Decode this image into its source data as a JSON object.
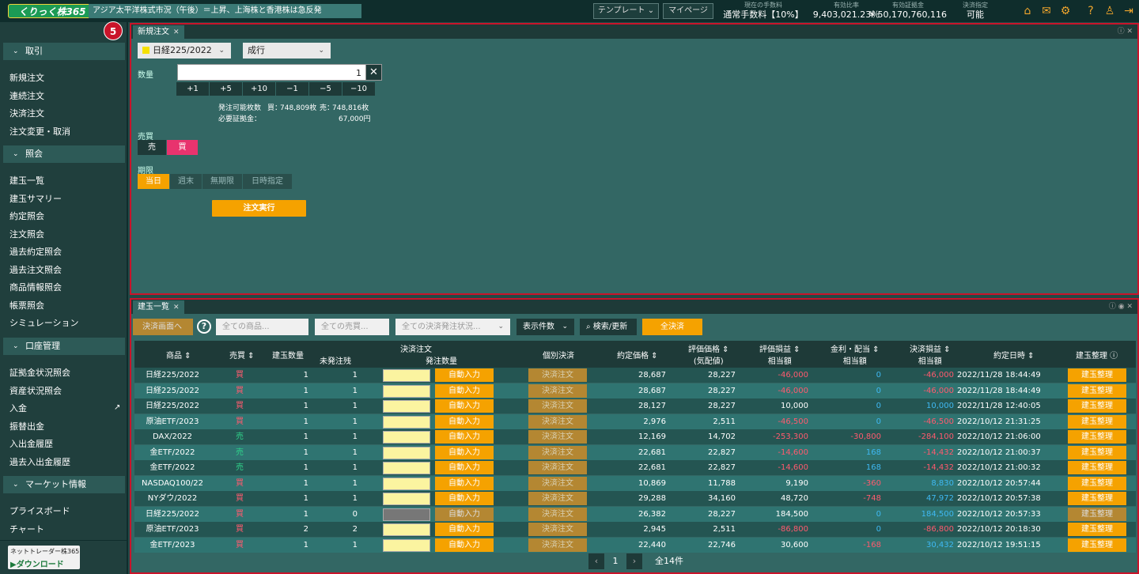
{
  "topbar": {
    "logo": "くりっく株365",
    "news": "アジア太平洋株式市況（午後）＝上昇、上海株と香港株は急反発",
    "template_label": "テンプレート",
    "mypage_label": "マイページ",
    "stats": [
      {
        "label": "現在の手数料",
        "value": "通常手数料【10%】"
      },
      {
        "label": "有効比率",
        "value": "9,403,021.23％"
      },
      {
        "label": "有効証拠金",
        "value": "¥ 50,170,760,116"
      },
      {
        "label": "決済指定",
        "value": "可能"
      }
    ],
    "icons": [
      "home-icon",
      "mail-icon",
      "gear-icon",
      "help-icon",
      "user-icon",
      "logout-icon"
    ]
  },
  "sidebar": {
    "badge": "5",
    "sections": [
      {
        "title": "取引",
        "items": [
          "新規注文",
          "連続注文",
          "決済注文",
          "注文変更・取消"
        ]
      },
      {
        "title": "照会",
        "items": [
          "建玉一覧",
          "建玉サマリー",
          "約定照会",
          "注文照会",
          "過去約定照会",
          "過去注文照会",
          "商品情報照会",
          "帳票照会",
          "シミュレーション"
        ]
      },
      {
        "title": "口座管理",
        "items": [
          "証拠金状況照会",
          "資産状況照会",
          "入金",
          "振替出金",
          "入出金履歴",
          "過去入出金履歴"
        ]
      },
      {
        "title": "マーケット情報",
        "items": [
          "プライスボード",
          "チャート"
        ]
      }
    ],
    "download_top": "ネットトレーダー株365",
    "download_bottom": "ダウンロード"
  },
  "order_panel": {
    "tab": "新規注文",
    "product": "日経225/2022",
    "order_type": "成行",
    "qty_label": "数量",
    "qty_value": "1",
    "steps": [
      "+1",
      "+5",
      "+10",
      "−1",
      "−5",
      "−10"
    ],
    "available_label": "発注可能枚数",
    "buy_label": "買：",
    "buy_value": "748,809枚",
    "sell_label": "売：",
    "sell_value": "748,816枚",
    "margin_label": "必要証拠金：",
    "margin_value": "67,000円",
    "side_label": "売買",
    "sell": "売",
    "buy": "買",
    "period_label": "期限",
    "periods": [
      "当日",
      "週末",
      "無期限",
      "日時指定"
    ],
    "submit": "注文実行"
  },
  "positions_panel": {
    "tab": "建玉一覧",
    "toolbar": {
      "settle_screen": "決済画面へ",
      "product_ph": "全ての商品...",
      "side_ph": "全ての売買...",
      "status_ph": "全ての決済発注状況...",
      "count_label": "表示件数",
      "search_label": "検索/更新",
      "settle_all": "全決済"
    },
    "headers": {
      "product": "商品",
      "side": "売買",
      "qty": "建玉数量",
      "unfilled": "未発注残",
      "settle_order": "決済注文",
      "order_qty": "発注数量",
      "individual": "個別決済",
      "exec_price": "約定価格",
      "eval_price1": "評価価格",
      "eval_price2": "(気配値)",
      "eval_pl1": "評価損益",
      "eval_pl2": "相当額",
      "swap1": "金利・配当",
      "swap2": "相当額",
      "settle_pl1": "決済損益",
      "settle_pl2": "相当額",
      "exec_date": "約定日時",
      "organize": "建玉整理"
    },
    "auto_label": "自動入力",
    "settle_label": "決済注文",
    "organize_label": "建玉整理",
    "rows": [
      {
        "product": "日経225/2022",
        "side": "買",
        "qty": "1",
        "unfilled": "1",
        "exec": "28,687",
        "eval": "28,227",
        "pl": "-46,000",
        "pl_c": "red",
        "swap": "0",
        "swap_c": "blue",
        "spl": "-46,000",
        "spl_c": "red",
        "date": "2022/11/28 18:44:49",
        "dis": false
      },
      {
        "product": "日経225/2022",
        "side": "買",
        "qty": "1",
        "unfilled": "1",
        "exec": "28,687",
        "eval": "28,227",
        "pl": "-46,000",
        "pl_c": "red",
        "swap": "0",
        "swap_c": "blue",
        "spl": "-46,000",
        "spl_c": "red",
        "date": "2022/11/28 18:44:49",
        "dis": false
      },
      {
        "product": "日経225/2022",
        "side": "買",
        "qty": "1",
        "unfilled": "1",
        "exec": "28,127",
        "eval": "28,227",
        "pl": "10,000",
        "pl_c": "wht",
        "swap": "0",
        "swap_c": "blue",
        "spl": "10,000",
        "spl_c": "blue",
        "date": "2022/11/28 12:40:05",
        "dis": false
      },
      {
        "product": "原油ETF/2023",
        "side": "買",
        "qty": "1",
        "unfilled": "1",
        "exec": "2,976",
        "eval": "2,511",
        "pl": "-46,500",
        "pl_c": "red",
        "swap": "0",
        "swap_c": "blue",
        "spl": "-46,500",
        "spl_c": "red",
        "date": "2022/10/12 21:31:25",
        "dis": false
      },
      {
        "product": "DAX/2022",
        "side": "売",
        "qty": "1",
        "unfilled": "1",
        "exec": "12,169",
        "eval": "14,702",
        "pl": "-253,300",
        "pl_c": "red",
        "swap": "-30,800",
        "swap_c": "red",
        "spl": "-284,100",
        "spl_c": "red",
        "date": "2022/10/12 21:06:00",
        "dis": false
      },
      {
        "product": "金ETF/2022",
        "side": "売",
        "qty": "1",
        "unfilled": "1",
        "exec": "22,681",
        "eval": "22,827",
        "pl": "-14,600",
        "pl_c": "red",
        "swap": "168",
        "swap_c": "blue",
        "spl": "-14,432",
        "spl_c": "red",
        "date": "2022/10/12 21:00:37",
        "dis": false
      },
      {
        "product": "金ETF/2022",
        "side": "売",
        "qty": "1",
        "unfilled": "1",
        "exec": "22,681",
        "eval": "22,827",
        "pl": "-14,600",
        "pl_c": "red",
        "swap": "168",
        "swap_c": "blue",
        "spl": "-14,432",
        "spl_c": "red",
        "date": "2022/10/12 21:00:32",
        "dis": false
      },
      {
        "product": "NASDAQ100/22",
        "side": "買",
        "qty": "1",
        "unfilled": "1",
        "exec": "10,869",
        "eval": "11,788",
        "pl": "9,190",
        "pl_c": "wht",
        "swap": "-360",
        "swap_c": "red",
        "spl": "8,830",
        "spl_c": "blue",
        "date": "2022/10/12 20:57:44",
        "dis": false
      },
      {
        "product": "NYダウ/2022",
        "side": "買",
        "qty": "1",
        "unfilled": "1",
        "exec": "29,288",
        "eval": "34,160",
        "pl": "48,720",
        "pl_c": "wht",
        "swap": "-748",
        "swap_c": "red",
        "spl": "47,972",
        "spl_c": "blue",
        "date": "2022/10/12 20:57:38",
        "dis": false
      },
      {
        "product": "日経225/2022",
        "side": "買",
        "qty": "1",
        "unfilled": "0",
        "exec": "26,382",
        "eval": "28,227",
        "pl": "184,500",
        "pl_c": "wht",
        "swap": "0",
        "swap_c": "blue",
        "spl": "184,500",
        "spl_c": "blue",
        "date": "2022/10/12 20:57:33",
        "dis": true
      },
      {
        "product": "原油ETF/2023",
        "side": "買",
        "qty": "2",
        "unfilled": "2",
        "exec": "2,945",
        "eval": "2,511",
        "pl": "-86,800",
        "pl_c": "red",
        "swap": "0",
        "swap_c": "blue",
        "spl": "-86,800",
        "spl_c": "red",
        "date": "2022/10/12 20:18:30",
        "dis": false
      },
      {
        "product": "金ETF/2023",
        "side": "買",
        "qty": "1",
        "unfilled": "1",
        "exec": "22,440",
        "eval": "22,746",
        "pl": "30,600",
        "pl_c": "wht",
        "swap": "-168",
        "swap_c": "red",
        "spl": "30,432",
        "spl_c": "blue",
        "date": "2022/10/12 19:51:15",
        "dis": false
      }
    ],
    "pager": {
      "page": "1",
      "total": "全14件"
    }
  }
}
